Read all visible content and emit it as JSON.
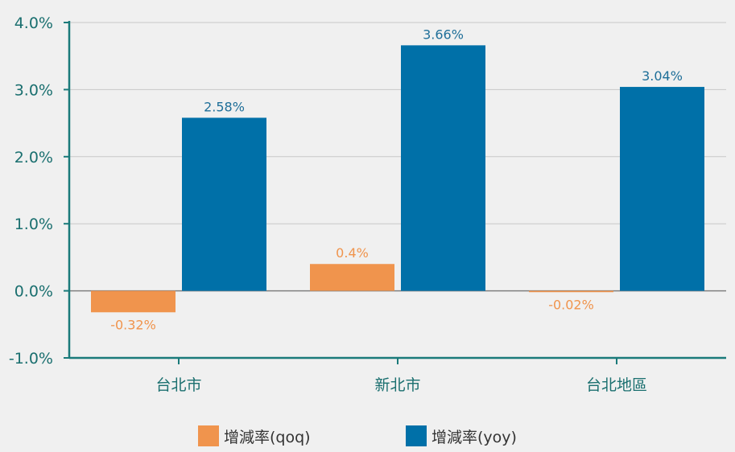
{
  "chart_data": {
    "type": "bar",
    "categories": [
      "台北市",
      "新北市",
      "台北地區"
    ],
    "series": [
      {
        "name": "增減率(qoq)",
        "values": [
          -0.32,
          0.4,
          -0.02
        ],
        "labels": [
          "-0.32%",
          "0.4%",
          "-0.02%"
        ],
        "color": "#f0944d"
      },
      {
        "name": "增減率(yoy)",
        "values": [
          2.58,
          3.66,
          3.04
        ],
        "labels": [
          "2.58%",
          "3.66%",
          "3.04%"
        ],
        "color": "#0070a8"
      }
    ],
    "ylim": [
      -1.0,
      4.0
    ],
    "yticks": [
      -1.0,
      0.0,
      1.0,
      2.0,
      3.0,
      4.0
    ],
    "ytick_labels": [
      "-1.0%",
      "0.0%",
      "1.0%",
      "2.0%",
      "3.0%",
      "4.0%"
    ],
    "grid": true,
    "legend_position": "bottom",
    "title": "",
    "xlabel": "",
    "ylabel": "",
    "axis_color": "#1a7a7a",
    "tick_label_color": "#1a6f6f",
    "value_label_colors": [
      "#f0944d",
      "#1f6f99"
    ]
  }
}
